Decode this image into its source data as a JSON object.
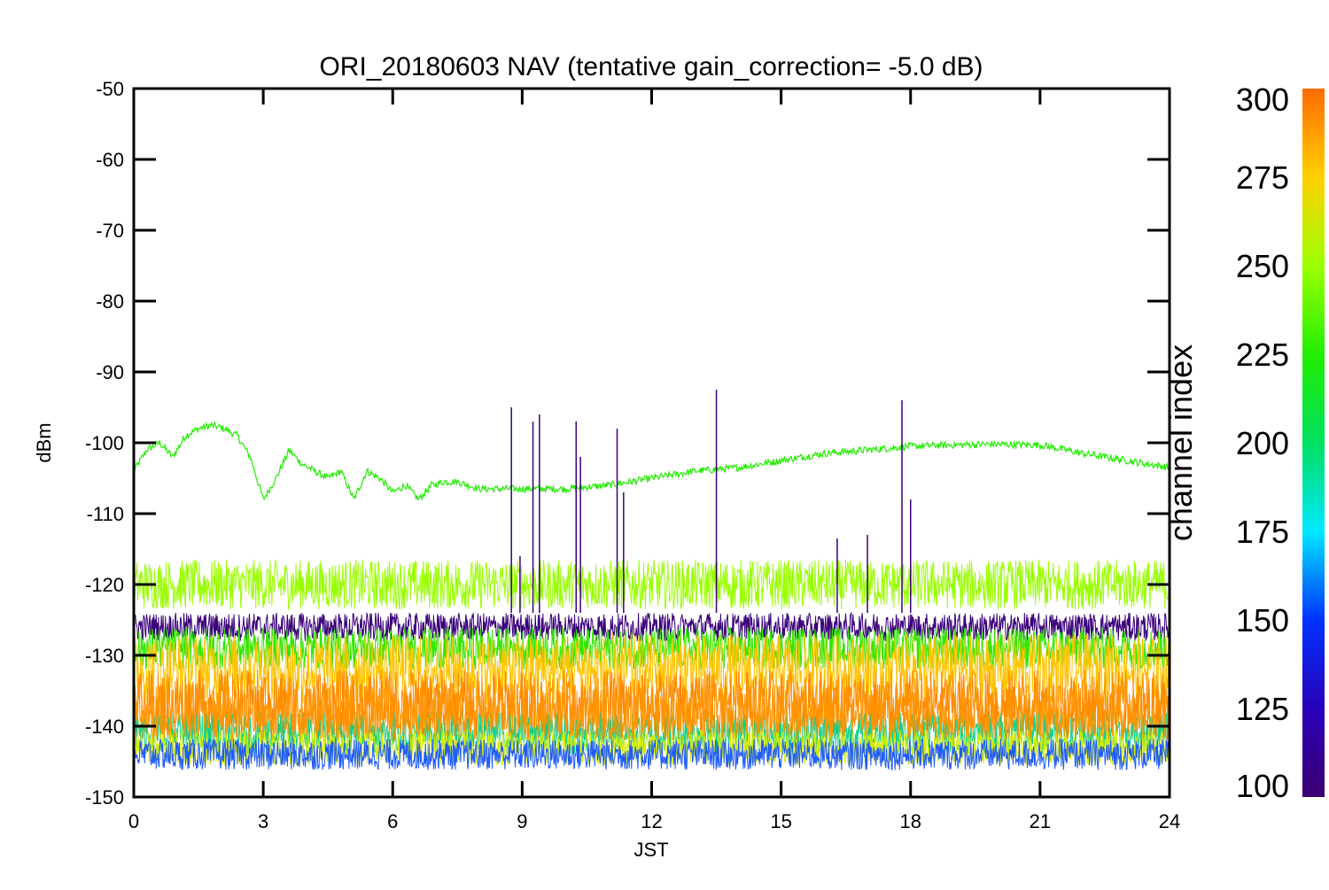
{
  "chart_data": {
    "type": "line",
    "title": "ORI_20180603 NAV (tentative gain_correction= -5.0 dB)",
    "xlabel": "JST",
    "ylabel": "dBm",
    "xlim": [
      0,
      24
    ],
    "ylim": [
      -150,
      -50
    ],
    "xticks": [
      0,
      3,
      6,
      9,
      12,
      15,
      18,
      21,
      24
    ],
    "xtick_labels": [
      "0",
      "3",
      "6",
      "9",
      "12",
      "15",
      "18",
      "21",
      "24"
    ],
    "yticks": [
      -50,
      -60,
      -70,
      -80,
      -90,
      -100,
      -110,
      -120,
      -130,
      -140,
      -150
    ],
    "ytick_labels": [
      "-50",
      "-60",
      "-70",
      "-80",
      "-90",
      "-100",
      "-110",
      "-120",
      "-130",
      "-140",
      "-150"
    ],
    "colorbar": {
      "label": "channel index",
      "range": [
        100,
        300
      ],
      "ticks": [
        "100",
        "125",
        "150",
        "175",
        "200",
        "225",
        "250",
        "275",
        "300"
      ]
    },
    "series": [
      {
        "channel": 230,
        "color": "#22ee00",
        "x": [
          0,
          0.3,
          0.6,
          0.9,
          1.2,
          1.5,
          1.8,
          2.1,
          2.4,
          2.7,
          3.0,
          3.3,
          3.6,
          3.9,
          4.2,
          4.5,
          4.8,
          5.1,
          5.4,
          5.7,
          6.0,
          6.3,
          6.6,
          6.9,
          7.2,
          7.5,
          8,
          9,
          10,
          11,
          12,
          13,
          14,
          15,
          16,
          17,
          18,
          19,
          20,
          21,
          22,
          23,
          24
        ],
        "y": [
          -104,
          -101,
          -100,
          -102,
          -99,
          -98,
          -97.5,
          -98,
          -99,
          -102,
          -108,
          -105,
          -101,
          -103,
          -104,
          -105,
          -104,
          -108,
          -104,
          -105,
          -107,
          -106,
          -108,
          -106,
          -105.5,
          -105.5,
          -106.5,
          -106.5,
          -106.5,
          -106,
          -105,
          -104,
          -103.5,
          -102.5,
          -101.5,
          -101,
          -100.5,
          -100.3,
          -100.2,
          -100.3,
          -101.5,
          -102.5,
          -103.5
        ]
      },
      {
        "channel": 255,
        "color": "#99ff00",
        "center": -120,
        "spread": 3.5
      },
      {
        "channel": 110,
        "color": "#3a007a",
        "center": -126,
        "spread": 2
      },
      {
        "channel": 240,
        "color": "#33e600",
        "center": -129,
        "spread": 3
      },
      {
        "channel": 280,
        "color": "#ffc400",
        "center": -132,
        "spread": 5
      },
      {
        "channel": 295,
        "color": "#ff8800",
        "center": -137,
        "spread": 5
      },
      {
        "channel": 190,
        "color": "#11d08a",
        "center": -141,
        "spread": 3
      },
      {
        "channel": 265,
        "color": "#d4ec00",
        "center": -143,
        "spread": 2.5
      },
      {
        "channel": 140,
        "color": "#1f5bff",
        "center": -144,
        "spread": 2.2
      },
      {
        "channel": 292,
        "color": "#ff9500",
        "center": -138,
        "spread": 4
      }
    ],
    "spikes": [
      {
        "x": 8.75,
        "y": -95
      },
      {
        "x": 8.95,
        "y": -116
      },
      {
        "x": 9.25,
        "y": -97
      },
      {
        "x": 9.4,
        "y": -96
      },
      {
        "x": 10.25,
        "y": -97
      },
      {
        "x": 10.35,
        "y": -102
      },
      {
        "x": 11.2,
        "y": -98
      },
      {
        "x": 11.35,
        "y": -107
      },
      {
        "x": 13.5,
        "y": -92.5
      },
      {
        "x": 16.3,
        "y": -113.5
      },
      {
        "x": 17.0,
        "y": -113
      },
      {
        "x": 17.8,
        "y": -94
      },
      {
        "x": 18.0,
        "y": -108
      }
    ]
  }
}
